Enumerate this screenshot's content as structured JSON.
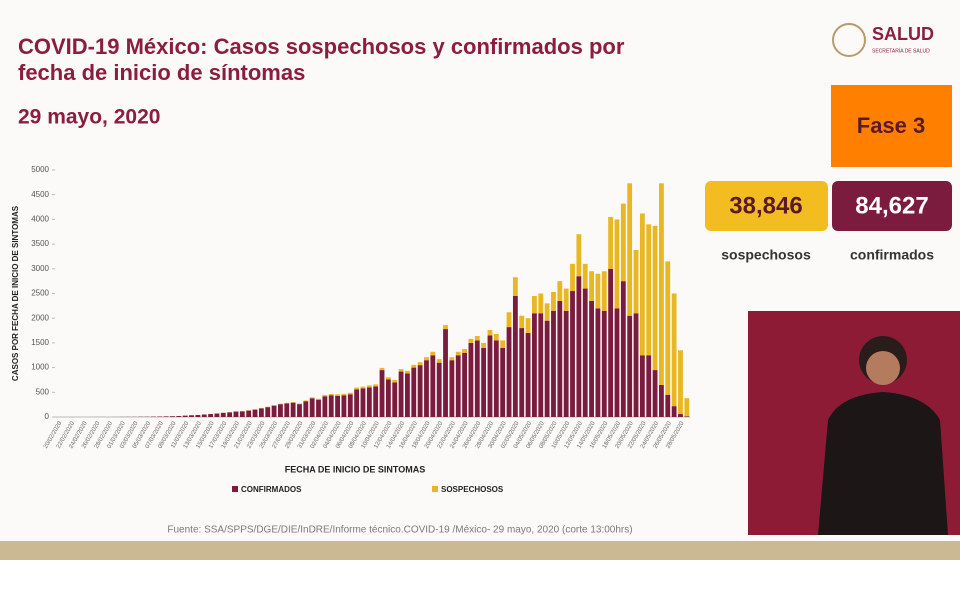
{
  "header": {
    "title": "COVID-19 México: Casos sospechosos y confirmados por fecha de inicio de síntomas",
    "date": "29 mayo, 2020",
    "logo": "SALUD",
    "logo_sub": "SECRETARÍA DE SALUD"
  },
  "phase": "Fase 3",
  "totals": {
    "sospechosos": {
      "value": "38,846",
      "label": "sospechosos"
    },
    "confirmados": {
      "value": "84,627",
      "label": "confirmados"
    }
  },
  "source": "Fuente: SSA/SPPS/DGE/DIE/InDRE/Informe técnico.COVID-19 /México- 29 mayo, 2020 (corte 13:00hrs)",
  "chart_data": {
    "type": "stacked_bar",
    "x_label": "FECHA DE INICIO DE SINTOMAS",
    "y_label": "CASOS POR FECHA DE INICIO DE SINTOMAS",
    "ylim": [
      0,
      5000
    ],
    "yticks": [
      0,
      500,
      1000,
      1500,
      2000,
      2500,
      3000,
      3500,
      4000,
      4500,
      5000
    ],
    "grid": false,
    "categories": [
      "20/02/2020",
      null,
      "22/02/2020",
      null,
      "24/02/2020",
      null,
      "26/02/2020",
      null,
      "28/02/2020",
      null,
      "01/03/2020",
      null,
      "03/03/2020",
      null,
      "05/03/2020",
      null,
      "07/03/2020",
      null,
      "09/03/2020",
      null,
      "11/03/2020",
      null,
      "13/03/2020",
      null,
      "15/03/2020",
      null,
      "17/03/2020",
      null,
      "19/03/2020",
      null,
      "21/03/2020",
      null,
      "23/03/2020",
      null,
      "25/03/2020",
      null,
      "27/03/2020",
      null,
      "29/03/2020",
      null,
      "31/03/2020",
      null,
      "02/04/2020",
      null,
      "04/04/2020",
      null,
      "06/04/2020",
      null,
      "08/04/2020",
      null,
      "10/04/2020",
      null,
      "12/04/2020",
      null,
      "14/04/2020",
      null,
      "16/04/2020",
      null,
      "18/04/2020",
      null,
      "20/04/2020",
      null,
      "22/04/2020",
      null,
      "24/04/2020",
      null,
      "26/04/2020",
      null,
      "28/04/2020",
      null,
      "30/04/2020",
      null,
      "02/05/2020",
      null,
      "04/05/2020",
      null,
      "06/05/2020",
      null,
      "08/05/2020",
      null,
      "10/05/2020",
      null,
      "12/05/2020",
      null,
      "14/05/2020",
      null,
      "16/05/2020",
      null,
      "18/05/2020",
      null,
      "20/05/2020",
      null,
      "22/05/2020",
      null,
      "24/05/2020",
      null,
      "26/05/2020",
      null,
      "28/05/2020",
      null
    ],
    "series": [
      {
        "name": "CONFIRMADOS",
        "color": "#7b1c3e",
        "values": [
          0,
          0,
          0,
          0,
          0,
          0,
          1,
          1,
          0,
          1,
          2,
          3,
          3,
          5,
          6,
          8,
          10,
          13,
          16,
          20,
          28,
          35,
          40,
          50,
          60,
          70,
          85,
          95,
          110,
          115,
          130,
          150,
          175,
          200,
          230,
          260,
          275,
          290,
          260,
          320,
          380,
          350,
          420,
          440,
          430,
          440,
          460,
          560,
          580,
          600,
          620,
          950,
          760,
          700,
          920,
          880,
          1000,
          1050,
          1150,
          1250,
          1100,
          1780,
          1150,
          1250,
          1300,
          1500,
          1550,
          1400,
          1650,
          1550,
          1400,
          1820,
          2450,
          1800,
          1700,
          2100,
          2100,
          1950,
          2150,
          2350,
          2150,
          2550,
          2850,
          2600,
          2350,
          2200,
          2150,
          3000,
          2200,
          2750,
          2050,
          2100,
          1250,
          1250,
          950,
          650,
          450,
          220,
          60,
          10
        ]
      },
      {
        "name": "SOSPECHOSOS",
        "color": "#e8b722",
        "values": [
          0,
          0,
          0,
          0,
          0,
          0,
          0,
          0,
          0,
          0,
          0,
          0,
          0,
          0,
          0,
          0,
          0,
          0,
          0,
          0,
          1,
          1,
          2,
          2,
          3,
          3,
          4,
          4,
          5,
          5,
          6,
          6,
          8,
          8,
          10,
          10,
          12,
          12,
          15,
          15,
          18,
          20,
          25,
          25,
          30,
          30,
          30,
          35,
          35,
          40,
          40,
          45,
          45,
          50,
          50,
          55,
          55,
          60,
          60,
          70,
          70,
          80,
          60,
          70,
          75,
          80,
          90,
          100,
          110,
          130,
          150,
          300,
          380,
          250,
          300,
          350,
          400,
          350,
          380,
          400,
          450,
          550,
          850,
          500,
          600,
          700,
          800,
          1050,
          1800,
          1570,
          2680,
          1280,
          2870,
          2650,
          2920,
          4080,
          2700,
          2280,
          1290,
          370
        ]
      }
    ]
  }
}
